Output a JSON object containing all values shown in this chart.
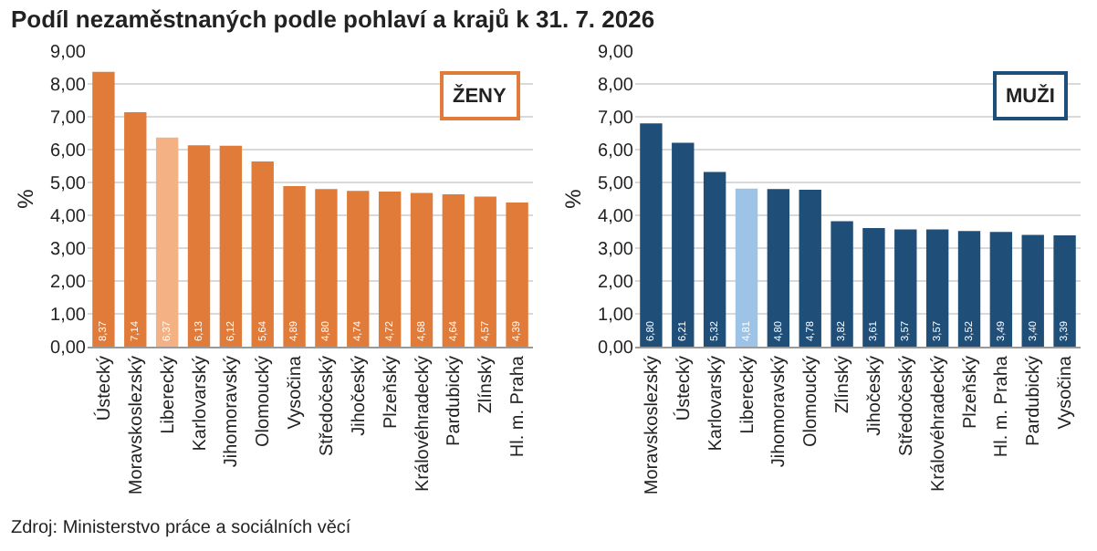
{
  "chart_data": [
    {
      "type": "bar",
      "title": "Podíl nezaměstnaných podle pohlaví a krajů k 31. 7. 2026",
      "ylabel": "%",
      "categories": [
        "Ústecký",
        "Moravskoslezský",
        "Liberecký",
        "Karlovarský",
        "Jihomoravský",
        "Olomoucký",
        "Vysočina",
        "Středočeský",
        "Jihočeský",
        "Plzeňský",
        "Královéhradecký",
        "Pardubický",
        "Zlínský",
        "Hl. m. Praha"
      ],
      "values": [
        8.37,
        7.14,
        6.37,
        6.13,
        6.12,
        5.64,
        4.89,
        4.8,
        4.74,
        4.72,
        4.68,
        4.64,
        4.57,
        4.39
      ],
      "value_labels": [
        "8,37",
        "7,14",
        "6,37",
        "6,13",
        "6,12",
        "5,64",
        "4,89",
        "4,80",
        "4,74",
        "4,72",
        "4,68",
        "4,64",
        "4,57",
        "4,39"
      ],
      "colors": [
        "#e07b39",
        "#e07b39",
        "#f4b183",
        "#e07b39",
        "#e07b39",
        "#e07b39",
        "#e07b39",
        "#e07b39",
        "#e07b39",
        "#e07b39",
        "#e07b39",
        "#e07b39",
        "#e07b39",
        "#e07b39"
      ],
      "ylim": [
        0,
        9
      ],
      "yticks": [
        {
          "value": 0,
          "label": "0,00"
        },
        {
          "value": 1,
          "label": "1,00"
        },
        {
          "value": 2,
          "label": "2,00"
        },
        {
          "value": 3,
          "label": "3,00"
        },
        {
          "value": 4,
          "label": "4,00"
        },
        {
          "value": 5,
          "label": "5,00"
        },
        {
          "value": 6,
          "label": "6,00"
        },
        {
          "value": 7,
          "label": "7,00"
        },
        {
          "value": 8,
          "label": "8,00"
        },
        {
          "value": 9,
          "label": "9,00"
        }
      ],
      "grid": "y",
      "annotations": [
        "ŽENY",
        "Zdroj: Ministerstvo práce a sociálních věcí"
      ]
    },
    {
      "type": "bar",
      "ylabel": "%",
      "categories": [
        "Moravskoslezský",
        "Ústecký",
        "Karlovarský",
        "Liberecký",
        "Jihomoravský",
        "Olomoucký",
        "Zlínský",
        "Jihočeský",
        "Středočeský",
        "Královéhradecký",
        "Plzeňský",
        "Hl. m. Praha",
        "Pardubický",
        "Vysočina"
      ],
      "values": [
        6.8,
        6.21,
        5.32,
        4.81,
        4.8,
        4.78,
        3.82,
        3.61,
        3.57,
        3.57,
        3.52,
        3.49,
        3.4,
        3.39
      ],
      "value_labels": [
        "6,80",
        "6,21",
        "5,32",
        "4,81",
        "4,80",
        "4,78",
        "3,82",
        "3,61",
        "3,57",
        "3,57",
        "3,52",
        "3,49",
        "3,40",
        "3,39"
      ],
      "colors": [
        "#1f4e79",
        "#1f4e79",
        "#1f4e79",
        "#9dc3e6",
        "#1f4e79",
        "#1f4e79",
        "#1f4e79",
        "#1f4e79",
        "#1f4e79",
        "#1f4e79",
        "#1f4e79",
        "#1f4e79",
        "#1f4e79",
        "#1f4e79"
      ],
      "ylim": [
        0,
        9
      ],
      "yticks": [
        {
          "value": 0,
          "label": "0,00"
        },
        {
          "value": 1,
          "label": "1,00"
        },
        {
          "value": 2,
          "label": "2,00"
        },
        {
          "value": 3,
          "label": "3,00"
        },
        {
          "value": 4,
          "label": "4,00"
        },
        {
          "value": 5,
          "label": "5,00"
        },
        {
          "value": 6,
          "label": "6,00"
        },
        {
          "value": 7,
          "label": "7,00"
        },
        {
          "value": 8,
          "label": "8,00"
        },
        {
          "value": 9,
          "label": "9,00"
        }
      ],
      "grid": "y",
      "annotations": [
        "MUŽI"
      ]
    }
  ]
}
